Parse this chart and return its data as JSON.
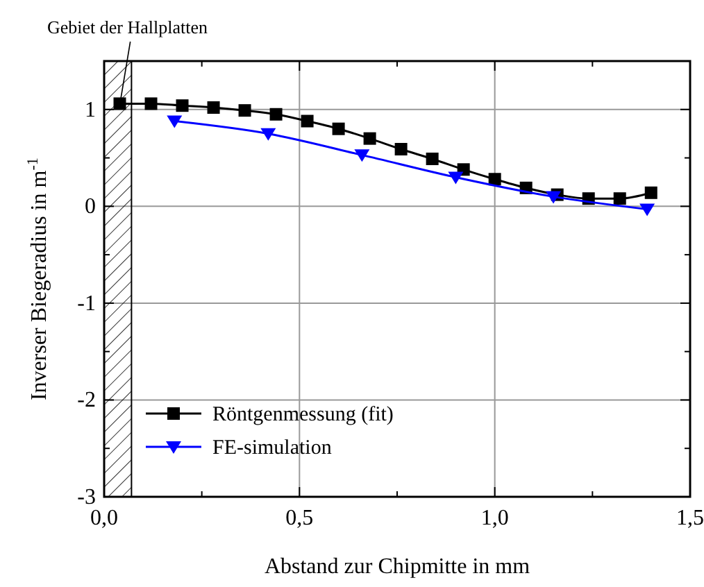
{
  "chart_data": {
    "type": "line",
    "xlabel": "Abstand zur Chipmitte in mm",
    "ylabel": "Inverser Biegeradius in m$^{-1}$",
    "xlim": [
      0,
      1.5
    ],
    "xticks": [
      {
        "value": 0,
        "label": "0,0"
      },
      {
        "value": 0.25,
        "label": null
      },
      {
        "value": 0.5,
        "label": "0,5"
      },
      {
        "value": 0.75,
        "label": null
      },
      {
        "value": 1,
        "label": "1,0"
      },
      {
        "value": 1.25,
        "label": null
      },
      {
        "value": 1.5,
        "label": "1,5"
      }
    ],
    "ylim": [
      -3,
      1.5
    ],
    "yticks": [
      -3,
      {
        "value": -2.5,
        "label": null
      },
      -2,
      {
        "value": -1.5,
        "label": null
      },
      -1,
      {
        "value": -0.5,
        "label": null
      },
      0,
      {
        "value": 0.5,
        "label": null
      },
      1
    ],
    "grid": true,
    "legend": "bottom left",
    "line_style": "solid",
    "series": [
      {
        "name": "Röntgenmessung (fit)",
        "color": "#000000",
        "marker": "square",
        "x": [
          0.04,
          0.12,
          0.2,
          0.28,
          0.36,
          0.44,
          0.52,
          0.6,
          0.68,
          0.76,
          0.84,
          0.92,
          1.0,
          1.08,
          1.16,
          1.24,
          1.32,
          1.4
        ],
        "values": [
          1.06,
          1.06,
          1.04,
          1.02,
          0.99,
          0.95,
          0.88,
          0.8,
          0.7,
          0.59,
          0.49,
          0.38,
          0.28,
          0.19,
          0.12,
          0.08,
          0.08,
          0.14
        ]
      },
      {
        "name": "FE-simulation",
        "color": "#0000ff",
        "marker": "triangle",
        "x": [
          0.18,
          0.42,
          0.66,
          0.9,
          1.15,
          1.39
        ],
        "values": [
          0.88,
          0.75,
          0.53,
          0.3,
          0.1,
          -0.03
        ]
      }
    ],
    "bands": [
      {
        "axis": "x",
        "from": 0,
        "to": 0.07,
        "label": "Gebiet der Hallplatten"
      }
    ]
  }
}
